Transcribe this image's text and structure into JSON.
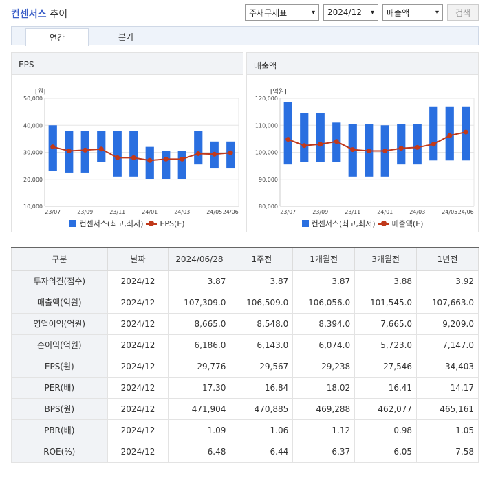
{
  "title": {
    "brand": "컨센서스",
    "rest": "추이"
  },
  "controls": {
    "type": "주재무제표",
    "period": "2024/12",
    "metric": "매출액",
    "search": "검색"
  },
  "tabs": [
    {
      "label": "연간",
      "active": true
    },
    {
      "label": "분기",
      "active": false
    }
  ],
  "colors": {
    "bar": "#2a6fe0",
    "line": "#c0391b"
  },
  "chart_data": [
    {
      "type": "bar",
      "title": "EPS",
      "ylabel": "[원]",
      "ylim": [
        10000,
        50000
      ],
      "yticks": [
        "50,000",
        "40,000",
        "30,000",
        "20,000",
        "10,000"
      ],
      "categories": [
        "23/07",
        "23/08",
        "23/09",
        "23/10",
        "23/11",
        "23/12",
        "24/01",
        "24/02",
        "24/03",
        "24/04",
        "24/05",
        "24/06"
      ],
      "xticks": [
        "23/07",
        "23/09",
        "23/11",
        "24/01",
        "24/03",
        "24/05",
        "24/06"
      ],
      "series": [
        {
          "name": "컨센서스(최고,최저)",
          "kind": "range",
          "low": [
            23000,
            22500,
            22500,
            26500,
            21000,
            21000,
            20000,
            20000,
            20000,
            25500,
            24000,
            24000
          ],
          "high": [
            40000,
            38000,
            38000,
            38000,
            38000,
            38000,
            32000,
            30500,
            30500,
            38000,
            34000,
            34000
          ]
        },
        {
          "name": "EPS(E)",
          "kind": "line",
          "values": [
            32000,
            30500,
            30800,
            31200,
            28000,
            28000,
            27000,
            27500,
            27500,
            29500,
            29300,
            29800
          ]
        }
      ]
    },
    {
      "type": "bar",
      "title": "매출액",
      "ylabel": "[억원]",
      "ylim": [
        80000,
        120000
      ],
      "yticks": [
        "120,000",
        "110,000",
        "100,000",
        "90,000",
        "80,000"
      ],
      "categories": [
        "23/07",
        "23/08",
        "23/09",
        "23/10",
        "23/11",
        "23/12",
        "24/01",
        "24/02",
        "24/03",
        "24/04",
        "24/05",
        "24/06"
      ],
      "xticks": [
        "23/07",
        "23/09",
        "23/11",
        "24/01",
        "24/03",
        "24/05",
        "24/06"
      ],
      "series": [
        {
          "name": "컨센서스(최고,최저)",
          "kind": "range",
          "low": [
            95500,
            96500,
            96500,
            96500,
            91000,
            91000,
            91000,
            95500,
            95500,
            97000,
            97000,
            97000
          ],
          "high": [
            118500,
            114500,
            114500,
            111000,
            110500,
            110500,
            110000,
            110500,
            110500,
            117000,
            117000,
            117000
          ]
        },
        {
          "name": "매출액(E)",
          "kind": "line",
          "values": [
            104800,
            102500,
            103000,
            104000,
            101000,
            100500,
            100500,
            101500,
            101800,
            103000,
            106200,
            107500
          ]
        }
      ]
    }
  ],
  "table": {
    "headers": [
      "구분",
      "날짜",
      "2024/06/28",
      "1주전",
      "1개월전",
      "3개월전",
      "1년전"
    ],
    "rows": [
      [
        "투자의견(점수)",
        "2024/12",
        "3.87",
        "3.87",
        "3.87",
        "3.88",
        "3.92"
      ],
      [
        "매출액(억원)",
        "2024/12",
        "107,309.0",
        "106,509.0",
        "106,056.0",
        "101,545.0",
        "107,663.0"
      ],
      [
        "영업이익(억원)",
        "2024/12",
        "8,665.0",
        "8,548.0",
        "8,394.0",
        "7,665.0",
        "9,209.0"
      ],
      [
        "순이익(억원)",
        "2024/12",
        "6,186.0",
        "6,143.0",
        "6,074.0",
        "5,723.0",
        "7,147.0"
      ],
      [
        "EPS(원)",
        "2024/12",
        "29,776",
        "29,567",
        "29,238",
        "27,546",
        "34,403"
      ],
      [
        "PER(배)",
        "2024/12",
        "17.30",
        "16.84",
        "18.02",
        "16.41",
        "14.17"
      ],
      [
        "BPS(원)",
        "2024/12",
        "471,904",
        "470,885",
        "469,288",
        "462,077",
        "465,161"
      ],
      [
        "PBR(배)",
        "2024/12",
        "1.09",
        "1.06",
        "1.12",
        "0.98",
        "1.05"
      ],
      [
        "ROE(%)",
        "2024/12",
        "6.48",
        "6.44",
        "6.37",
        "6.05",
        "7.58"
      ]
    ]
  }
}
